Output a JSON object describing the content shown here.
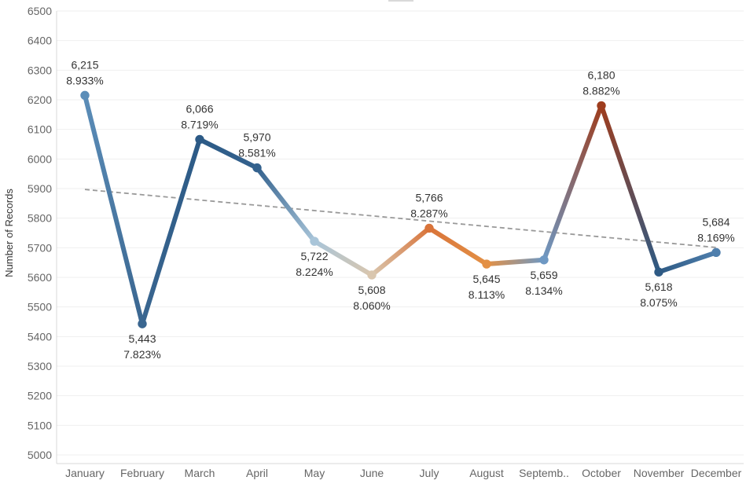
{
  "chart_data": {
    "type": "line",
    "title": "",
    "xlabel": "",
    "ylabel": "Number of Records",
    "ylim": [
      5000,
      6500
    ],
    "yticks": [
      5000,
      5100,
      5200,
      5300,
      5400,
      5500,
      5600,
      5700,
      5800,
      5900,
      6000,
      6100,
      6200,
      6300,
      6400,
      6500
    ],
    "ytick_labels": [
      "5000",
      "5100",
      "5200",
      "5300",
      "5400",
      "5500",
      "5600",
      "5700",
      "5800",
      "5900",
      "6000",
      "6100",
      "6200",
      "6300",
      "6400",
      "6500"
    ],
    "categories": [
      "January",
      "February",
      "March",
      "April",
      "May",
      "June",
      "July",
      "August",
      "Septemb..",
      "October",
      "November",
      "December"
    ],
    "series": [
      {
        "values": [
          6215,
          5443,
          6066,
          5970,
          5722,
          5608,
          5766,
          5645,
          5659,
          6180,
          5618,
          5684
        ],
        "value_labels": [
          "6,215",
          "5,443",
          "6,066",
          "5,970",
          "5,722",
          "5,608",
          "5,766",
          "5,645",
          "5,659",
          "6,180",
          "5,618",
          "5,684"
        ],
        "percent_labels": [
          "8.933%",
          "7.823%",
          "8.719%",
          "8.581%",
          "8.224%",
          "8.060%",
          "8.287%",
          "8.113%",
          "8.134%",
          "8.882%",
          "8.075%",
          "8.169%"
        ],
        "point_colors": [
          "#5b8db8",
          "#3a6690",
          "#2c5a86",
          "#34628e",
          "#a9c5d9",
          "#d9c6ae",
          "#d9743a",
          "#e39045",
          "#6e98c3",
          "#9e3d1e",
          "#2e5a84",
          "#4f7fad"
        ]
      }
    ],
    "trend_line": {
      "start": [
        1,
        5897
      ],
      "end": [
        12,
        5701
      ],
      "color": "#999999",
      "style": "dashed"
    },
    "grid": "horizontal",
    "legend": "none"
  }
}
